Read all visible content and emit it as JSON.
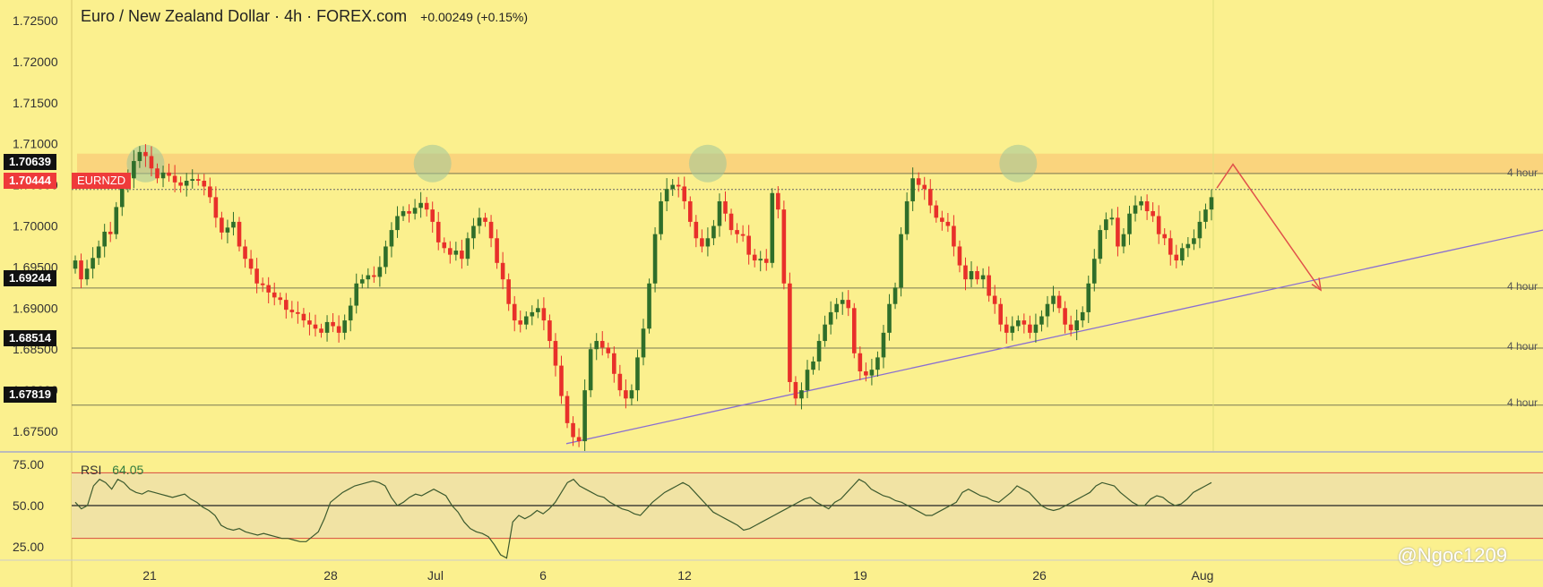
{
  "header": {
    "title": "Euro / New Zealand Dollar · 4h · FOREX.com",
    "change": "+0.00249 (+0.15%)"
  },
  "symbol": "EURNZD",
  "price_labels": {
    "current": "1.70444",
    "r1": "1.70639",
    "s1": "1.69244",
    "s2": "1.68514",
    "s3": "1.67819"
  },
  "level_tags": [
    "4 hour",
    "4 hour",
    "4 hour",
    "4 hour"
  ],
  "rsi": {
    "label": "RSI",
    "value": "64.05"
  },
  "watermark": "@Ngoc1209",
  "colors": {
    "bull": "#2f6e2a",
    "bear": "#e8302a",
    "bg": "#fbf08e",
    "zone": "#f9cf7a",
    "trend": "#8a6fd1",
    "arrow": "#e0504a"
  },
  "chart_data": {
    "type": "candlestick",
    "title": "Euro / New Zealand Dollar · 4h · FOREX.com",
    "x_ticks": [
      "21",
      "28",
      "Jul",
      "6",
      "12",
      "19",
      "26",
      "Aug"
    ],
    "y_ticks": [
      "1.72500",
      "1.72000",
      "1.71500",
      "1.71000",
      "1.70500",
      "1.70000",
      "1.69500",
      "1.69000",
      "1.68500",
      "1.68000",
      "1.67500"
    ],
    "y_range": [
      1.6725,
      1.7275
    ],
    "horizontal_levels": [
      1.70639,
      1.70444,
      1.69244,
      1.68514,
      1.67819
    ],
    "resistance_zone": [
      1.7063,
      1.7088
    ],
    "rsi_ticks": [
      "75.00",
      "50.00",
      "25.00"
    ],
    "rsi_range": [
      20,
      80
    ],
    "rsi_bands": [
      70,
      30
    ],
    "rsi_mid": 50,
    "closes": [
      1.6958,
      1.6935,
      1.6948,
      1.6961,
      1.6975,
      1.6993,
      1.699,
      1.7023,
      1.7048,
      1.7058,
      1.7079,
      1.709,
      1.7085,
      1.707,
      1.7058,
      1.7065,
      1.7061,
      1.7053,
      1.7049,
      1.7055,
      1.7057,
      1.7055,
      1.7048,
      1.7035,
      1.701,
      1.6992,
      1.6998,
      1.7005,
      1.6975,
      1.696,
      1.6948,
      1.693,
      1.6928,
      1.6919,
      1.6913,
      1.691,
      1.6898,
      1.6895,
      1.6893,
      1.6885,
      1.688,
      1.6875,
      1.687,
      1.6883,
      1.6878,
      1.687,
      1.6885,
      1.6903,
      1.693,
      1.6935,
      1.694,
      1.6938,
      1.695,
      1.6975,
      1.6995,
      1.7012,
      1.7018,
      1.7015,
      1.7022,
      1.7028,
      1.702,
      1.7005,
      1.698,
      1.6973,
      1.6965,
      1.697,
      1.696,
      1.6985,
      1.7,
      1.701,
      1.7005,
      1.6985,
      1.6955,
      1.6935,
      1.6905,
      1.6885,
      1.688,
      1.689,
      1.6895,
      1.69,
      1.6885,
      1.686,
      1.683,
      1.6793,
      1.676,
      1.6743,
      1.6738,
      1.68,
      1.685,
      1.686,
      1.6852,
      1.6845,
      1.682,
      1.68,
      1.679,
      1.68,
      1.684,
      1.6875,
      1.693,
      1.699,
      1.703,
      1.7045,
      1.705,
      1.7048,
      1.703,
      1.7005,
      1.6985,
      1.6975,
      1.6985,
      1.7,
      1.703,
      1.7015,
      1.6995,
      1.699,
      1.6988,
      1.6965,
      1.6958,
      1.696,
      1.6955,
      1.704,
      1.702,
      1.693,
      1.681,
      1.679,
      1.68,
      1.6825,
      1.6835,
      1.686,
      1.688,
      1.6895,
      1.6905,
      1.691,
      1.69,
      1.6845,
      1.6823,
      1.6818,
      1.6825,
      1.684,
      1.687,
      1.6905,
      1.6925,
      1.699,
      1.703,
      1.7058,
      1.705,
      1.7045,
      1.7025,
      1.701,
      1.7005,
      1.7,
      1.6975,
      1.6952,
      1.6935,
      1.6945,
      1.6935,
      1.694,
      1.6915,
      1.6905,
      1.688,
      1.687,
      1.6878,
      1.6885,
      1.688,
      1.687,
      1.688,
      1.689,
      1.6905,
      1.6915,
      1.69,
      1.688,
      1.6873,
      1.6885,
      1.6895,
      1.693,
      1.696,
      1.6995,
      1.7008,
      1.701,
      1.6975,
      1.699,
      1.7015,
      1.7025,
      1.703,
      1.7018,
      1.7012,
      1.699,
      1.6985,
      1.6965,
      1.6958,
      1.6973,
      1.6978,
      1.6985,
      1.7005,
      1.702,
      1.7035
    ],
    "rsi_values": [
      52,
      48,
      50,
      62,
      66,
      64,
      60,
      66,
      64,
      60,
      58,
      57,
      59,
      58,
      57,
      56,
      55,
      56,
      57,
      54,
      52,
      49,
      47,
      44,
      38,
      36,
      35,
      36,
      34,
      33,
      32,
      33,
      32,
      31,
      30,
      30,
      29,
      28,
      28,
      31,
      34,
      42,
      52,
      55,
      58,
      60,
      62,
      63,
      64,
      65,
      64,
      62,
      55,
      50,
      52,
      55,
      57,
      56,
      58,
      60,
      58,
      56,
      50,
      46,
      40,
      36,
      34,
      33,
      31,
      26,
      20,
      18,
      40,
      44,
      42,
      44,
      47,
      45,
      48,
      52,
      58,
      64,
      66,
      62,
      60,
      58,
      56,
      55,
      52,
      50,
      48,
      47,
      45,
      44,
      48,
      52,
      55,
      58,
      60,
      62,
      64,
      62,
      58,
      54,
      50,
      46,
      44,
      42,
      40,
      38,
      35,
      36,
      38,
      40,
      42,
      44,
      46,
      48,
      50,
      52,
      54,
      55,
      52,
      50,
      48,
      52,
      54,
      58,
      62,
      66,
      64,
      60,
      58,
      56,
      55,
      53,
      52,
      50,
      48,
      46,
      44,
      44,
      46,
      48,
      50,
      52,
      58,
      60,
      58,
      56,
      55,
      53,
      52,
      55,
      58,
      62,
      60,
      58,
      54,
      50,
      48,
      47,
      48,
      50,
      52,
      54,
      56,
      58,
      62,
      64,
      63,
      62,
      58,
      55,
      52,
      50,
      50,
      54,
      56,
      55,
      52,
      50,
      51,
      54,
      58,
      60,
      62,
      64
    ]
  }
}
